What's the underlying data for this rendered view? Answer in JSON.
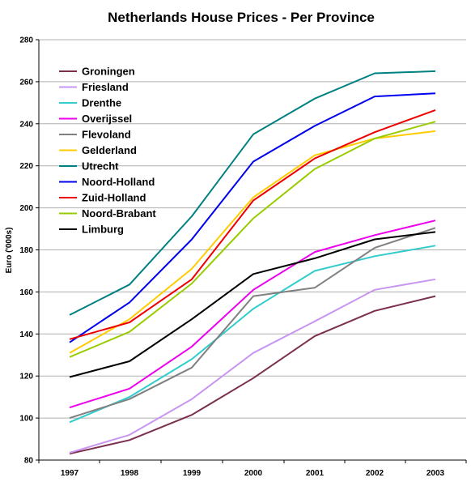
{
  "chart_data": {
    "type": "line",
    "title": "Netherlands House Prices - Per Province",
    "ylabel": "Euro ('000s)",
    "xlabel": "",
    "categories": [
      "1997",
      "1998",
      "1999",
      "2000",
      "2001",
      "2002",
      "2003"
    ],
    "ylim": [
      80,
      280
    ],
    "yticks": [
      "80",
      "100",
      "120",
      "140",
      "160",
      "180",
      "200",
      "220",
      "240",
      "260",
      "280"
    ],
    "grid": "horizontal",
    "legend_position": "top-left",
    "series": [
      {
        "name": "Groningen",
        "color": "#7b2f4e",
        "values": [
          83,
          89.5,
          101.5,
          119,
          139,
          151,
          158
        ]
      },
      {
        "name": "Friesland",
        "color": "#c896f0",
        "values": [
          83.5,
          92,
          109,
          131,
          146,
          161,
          166
        ]
      },
      {
        "name": "Drenthe",
        "color": "#33cccc",
        "values": [
          98,
          110,
          128,
          152,
          170,
          177,
          182
        ]
      },
      {
        "name": "Overijssel",
        "color": "#ee00ee",
        "values": [
          105,
          114,
          134,
          161,
          179,
          187,
          194
        ]
      },
      {
        "name": "Flevoland",
        "color": "#808080",
        "values": [
          100,
          109,
          124,
          158,
          162,
          181,
          190.5
        ]
      },
      {
        "name": "Gelderland",
        "color": "#ffcc00",
        "values": [
          131,
          147,
          171,
          205,
          225,
          233,
          236.5
        ]
      },
      {
        "name": "Utrecht",
        "color": "#008080",
        "values": [
          149,
          163.5,
          196,
          235,
          252,
          264,
          265
        ]
      },
      {
        "name": "Noord-Holland",
        "color": "#0000ee",
        "values": [
          136,
          155,
          185,
          222,
          239,
          253,
          254.5
        ]
      },
      {
        "name": "Zuid-Holland",
        "color": "#ee0000",
        "values": [
          137.5,
          145.5,
          166,
          203.5,
          223.5,
          236,
          246.5
        ]
      },
      {
        "name": "Noord-Brabant",
        "color": "#99cc00",
        "values": [
          129,
          141,
          164,
          195,
          218.5,
          233,
          241
        ]
      },
      {
        "name": "Limburg",
        "color": "#000000",
        "values": [
          119.5,
          127,
          147,
          168.5,
          176,
          185,
          188.5
        ]
      }
    ]
  }
}
